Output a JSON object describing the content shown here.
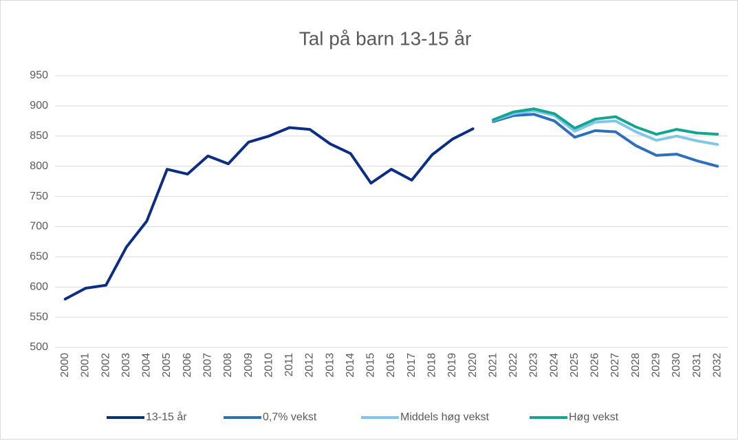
{
  "chart_data": {
    "type": "line",
    "title": "Tal på barn 13-15 år",
    "categories": [
      "2000",
      "2001",
      "2002",
      "2003",
      "2004",
      "2005",
      "2006",
      "2007",
      "2008",
      "2009",
      "2010",
      "2011",
      "2012",
      "2013",
      "2014",
      "2015",
      "2016",
      "2017",
      "2018",
      "2019",
      "2020",
      "2021",
      "2022",
      "2023",
      "2024",
      "2025",
      "2026",
      "2027",
      "2028",
      "2029",
      "2030",
      "2031",
      "2032"
    ],
    "series": [
      {
        "name": "13-15 år",
        "color": "#0b2d84",
        "values": [
          580,
          598,
          603,
          666,
          709,
          795,
          787,
          817,
          804,
          840,
          850,
          864,
          861,
          837,
          821,
          772,
          795,
          777,
          819,
          845,
          862,
          null,
          null,
          null,
          null,
          null,
          null,
          null,
          null,
          null,
          null,
          null,
          null
        ]
      },
      {
        "name": "0,7% vekst",
        "color": "#2e6fbd",
        "values": [
          null,
          null,
          null,
          null,
          null,
          null,
          null,
          null,
          null,
          null,
          null,
          null,
          null,
          null,
          null,
          null,
          null,
          null,
          null,
          null,
          null,
          874,
          884,
          886,
          875,
          848,
          859,
          857,
          834,
          818,
          820,
          809,
          800
        ]
      },
      {
        "name": "Middels høg vekst",
        "color": "#7fc7ea",
        "values": [
          null,
          null,
          null,
          null,
          null,
          null,
          null,
          null,
          null,
          null,
          null,
          null,
          null,
          null,
          null,
          null,
          null,
          null,
          null,
          null,
          null,
          876,
          887,
          892,
          884,
          858,
          873,
          875,
          857,
          843,
          850,
          842,
          836
        ]
      },
      {
        "name": "Høg vekst",
        "color": "#13a58e",
        "values": [
          null,
          null,
          null,
          null,
          null,
          null,
          null,
          null,
          null,
          null,
          null,
          null,
          null,
          null,
          null,
          null,
          null,
          null,
          null,
          null,
          null,
          877,
          890,
          895,
          887,
          863,
          878,
          882,
          865,
          853,
          861,
          855,
          853
        ]
      }
    ],
    "ylim": [
      500,
      950
    ],
    "yticks": [
      500,
      550,
      600,
      650,
      700,
      750,
      800,
      850,
      900,
      950
    ],
    "grid": true,
    "legend": "bottom"
  }
}
